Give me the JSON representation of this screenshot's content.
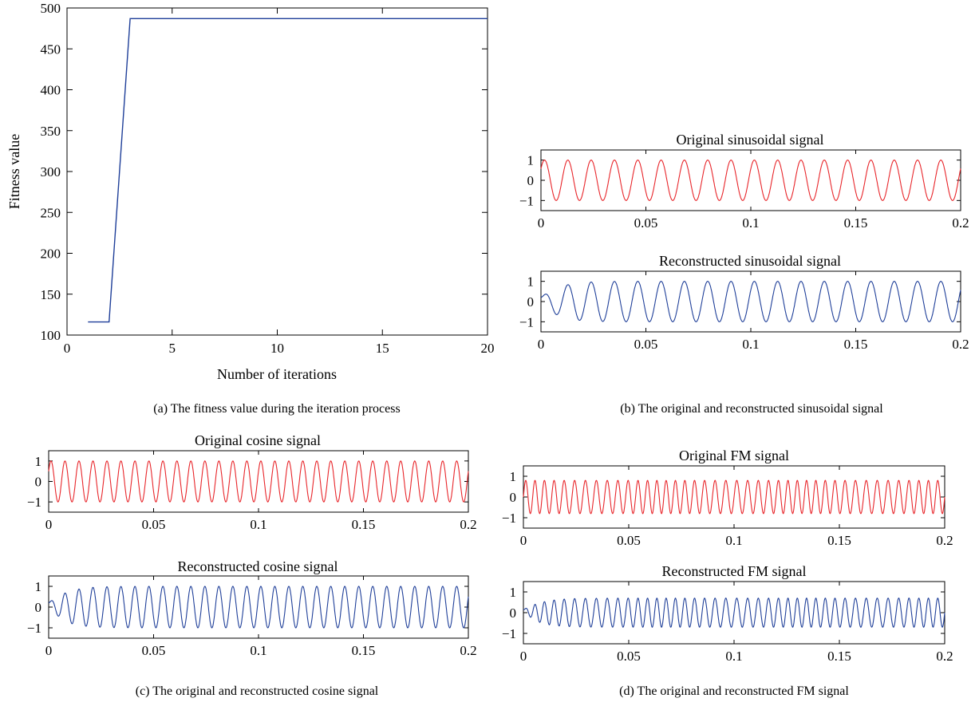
{
  "chart_data": [
    {
      "id": "fitness",
      "type": "line",
      "caption": "(a)  The fitness value during the iteration process",
      "xlabel": "Number of iterations",
      "ylabel": "Fitness value",
      "xlim": [
        0,
        20
      ],
      "ylim": [
        100,
        500
      ],
      "xticks": [
        "0",
        "5",
        "10",
        "15",
        "20"
      ],
      "yticks": [
        "100",
        "150",
        "200",
        "250",
        "300",
        "350",
        "400",
        "450",
        "500"
      ],
      "color": "#1f3f99",
      "x": [
        1,
        2,
        3,
        20
      ],
      "y": [
        116,
        116,
        487,
        487
      ]
    },
    {
      "id": "sin",
      "caption": "(b)  The original and reconstructed sinusoidal signal",
      "panels": [
        {
          "title": "Original sinusoidal signal",
          "type": "line",
          "color": "#e8252a",
          "xlim": [
            0,
            0.2
          ],
          "ylim": [
            -1.5,
            1.5
          ],
          "xticks": [
            "0",
            "0.05",
            "0.1",
            "0.15",
            "0.2"
          ],
          "yticks": [
            "1",
            "0",
            "−1"
          ],
          "signal": {
            "kind": "sine",
            "cycles": 18,
            "amplitude": 1,
            "phase_deg": 35,
            "startup": "none"
          }
        },
        {
          "title": "Reconstructed sinusoidal signal",
          "type": "line",
          "color": "#1f3f99",
          "xlim": [
            0,
            0.2
          ],
          "ylim": [
            -1.5,
            1.5
          ],
          "xticks": [
            "0",
            "0.05",
            "0.1",
            "0.15",
            "0.2"
          ],
          "yticks": [
            "1",
            "0",
            "−1"
          ],
          "signal": {
            "kind": "sine",
            "cycles": 18,
            "amplitude": 1,
            "phase_deg": 35,
            "startup": "wobble"
          }
        }
      ]
    },
    {
      "id": "cos",
      "caption": "(c)  The original and reconstructed cosine signal",
      "panels": [
        {
          "title": "Original cosine signal",
          "type": "line",
          "color": "#e8252a",
          "xlim": [
            0,
            0.2
          ],
          "ylim": [
            -1.5,
            1.5
          ],
          "xticks": [
            "0",
            "0.05",
            "0.1",
            "0.15",
            "0.2"
          ],
          "yticks": [
            "1",
            "0",
            "−1"
          ],
          "signal": {
            "kind": "cosine",
            "cycles": 30,
            "amplitude": 1,
            "phase_deg": -60,
            "startup": "none"
          }
        },
        {
          "title": "Reconstructed cosine signal",
          "type": "line",
          "color": "#1f3f99",
          "xlim": [
            0,
            0.2
          ],
          "ylim": [
            -1.5,
            1.5
          ],
          "xticks": [
            "0",
            "0.05",
            "0.1",
            "0.15",
            "0.2"
          ],
          "yticks": [
            "1",
            "0",
            "−1"
          ],
          "signal": {
            "kind": "cosine",
            "cycles": 30,
            "amplitude": 1,
            "phase_deg": -60,
            "startup": "wobble"
          }
        }
      ]
    },
    {
      "id": "fm",
      "caption": "(d)  The original and reconstructed FM signal",
      "panels": [
        {
          "title": "Original FM signal",
          "type": "line",
          "color": "#e8252a",
          "xlim": [
            0,
            0.2
          ],
          "ylim": [
            -1.5,
            1.5
          ],
          "xticks": [
            "0",
            "0.05",
            "0.1",
            "0.15",
            "0.2"
          ],
          "yticks": [
            "1",
            "0",
            "−1"
          ],
          "signal": {
            "kind": "fm",
            "cycles": 42,
            "amplitude": 0.8,
            "phase_deg": 0,
            "startup": "none"
          }
        },
        {
          "title": "Reconstructed FM signal",
          "type": "line",
          "color": "#1f3f99",
          "xlim": [
            0,
            0.2
          ],
          "ylim": [
            -1.5,
            1.5
          ],
          "xticks": [
            "0",
            "0.05",
            "0.1",
            "0.15",
            "0.2"
          ],
          "yticks": [
            "1",
            "0",
            "−1"
          ],
          "signal": {
            "kind": "fm",
            "cycles": 42,
            "amplitude": 0.7,
            "phase_deg": 0,
            "startup": "wobble"
          }
        }
      ]
    }
  ]
}
